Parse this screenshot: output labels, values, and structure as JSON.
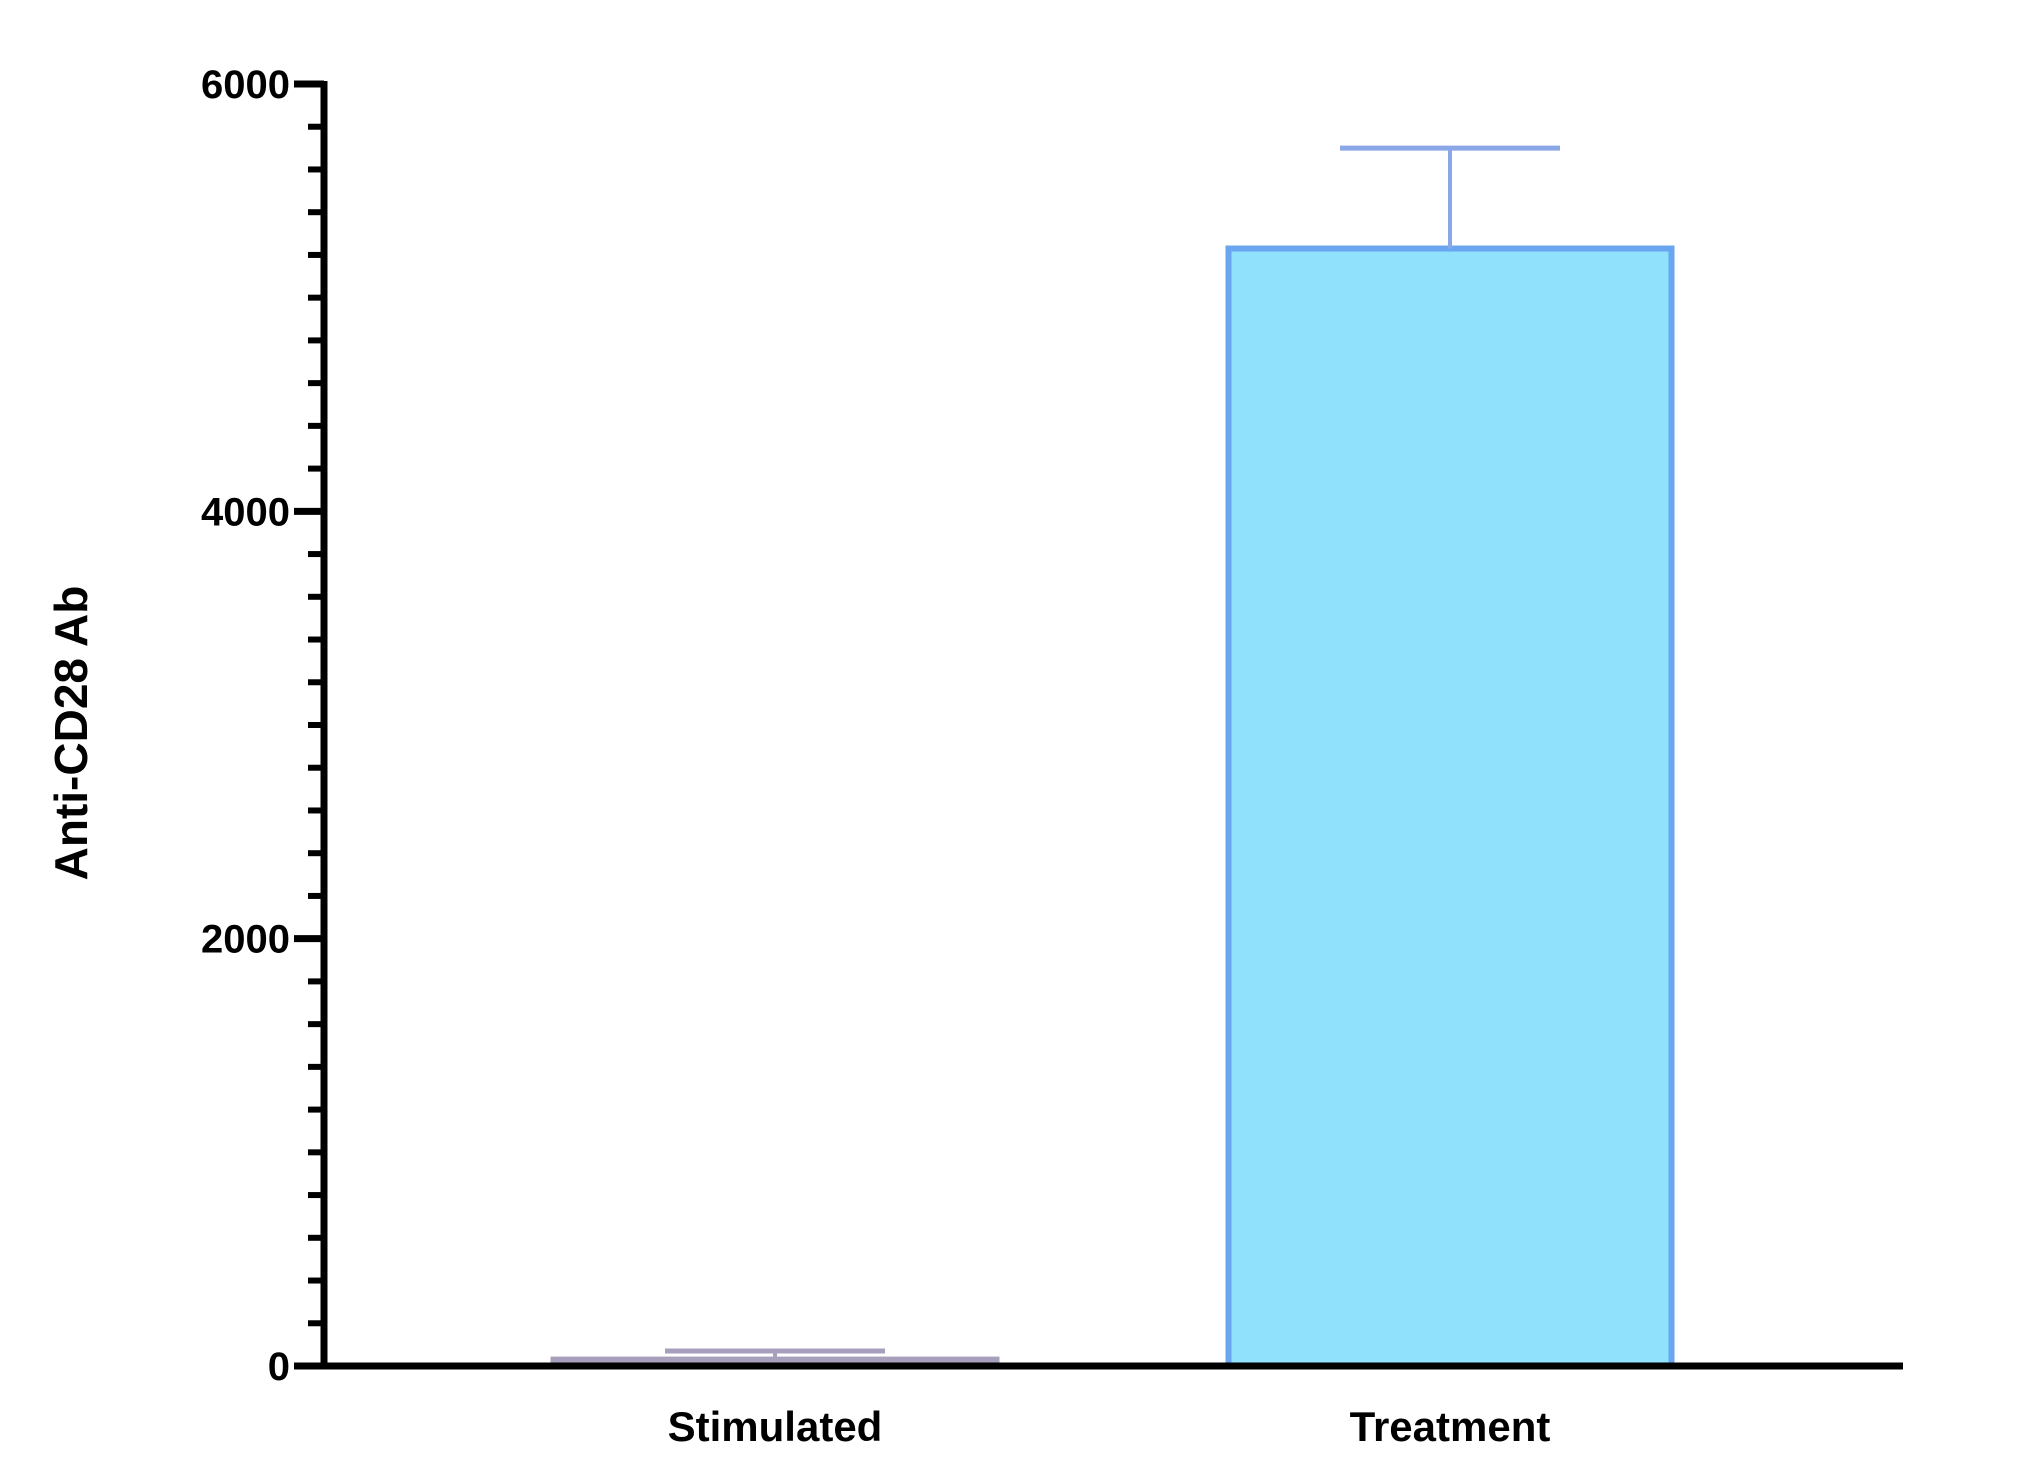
{
  "chart_data": {
    "type": "bar",
    "title": "",
    "xlabel": "",
    "ylabel": "Anti-CD28 Ab",
    "ylim": [
      0,
      6000
    ],
    "y_major_ticks": [
      0,
      2000,
      4000,
      6000
    ],
    "y_minor_step": 200,
    "y_tick_labels": [
      "0",
      "2000",
      "4000",
      "6000"
    ],
    "grid": false,
    "legend": "none",
    "categories": [
      "Stimulated",
      "Treatment"
    ],
    "values": [
      30,
      5230
    ],
    "error_upper": [
      70,
      5700
    ],
    "bar_fill_colors": [
      "#9b8fb0",
      "#8fe1fc"
    ],
    "bar_edge_colors": [
      "#a89fbd",
      "#6aa5ef"
    ],
    "error_colors": [
      "#a89fbd",
      "#8aa8e8"
    ],
    "axis_color": "#000000"
  }
}
